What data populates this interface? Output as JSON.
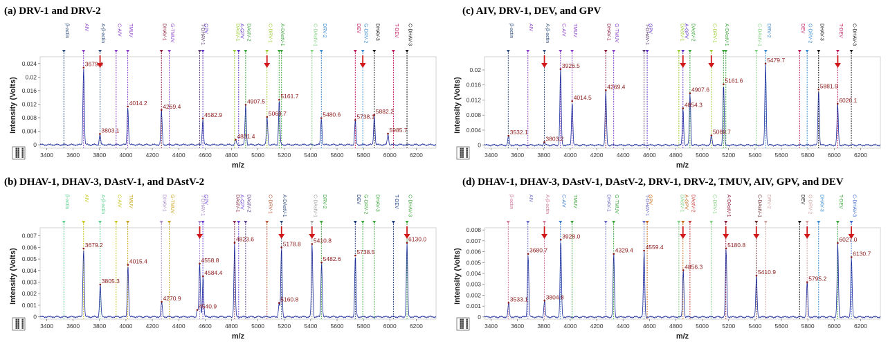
{
  "axes": {
    "xlabel": "m/z",
    "ylabel": "Intensity (Volts)"
  },
  "chart_data": [
    {
      "id": "a",
      "type": "line",
      "title": "(a) DRV-1 and DRV-2",
      "xlabel": "m/z",
      "ylabel": "Intensity (Volts)",
      "xlim": [
        3350,
        6350
      ],
      "ylim": [
        -0.001,
        0.026
      ],
      "xticks": [
        3400,
        3600,
        3800,
        4000,
        4200,
        4400,
        4600,
        4800,
        5000,
        5200,
        5400,
        5600,
        5800,
        6000,
        6200
      ],
      "yticks": [
        0.024,
        0.02,
        0.016,
        0.012,
        0.008,
        0.004,
        0
      ],
      "ytick_labels": [
        "0.024",
        "0.02",
        "0.016",
        "0.012",
        "0.008",
        "0.004",
        "0"
      ],
      "peaks": [
        {
          "x": 3679.4,
          "y": 0.0228,
          "label": "3679.4"
        },
        {
          "x": 3803.1,
          "y": 0.0032,
          "label": "3803.1"
        },
        {
          "x": 4014.2,
          "y": 0.0113,
          "label": "4014.2"
        },
        {
          "x": 4269.4,
          "y": 0.0103,
          "label": "4269.4"
        },
        {
          "x": 4582.9,
          "y": 0.0078,
          "label": "4582.9"
        },
        {
          "x": 4831.4,
          "y": 0.0015,
          "label": "4831.4"
        },
        {
          "x": 4907.5,
          "y": 0.0118,
          "label": "4907.5"
        },
        {
          "x": 5069.7,
          "y": 0.0082,
          "label": "5069.7"
        },
        {
          "x": 5161.7,
          "y": 0.0133,
          "label": "5161.7"
        },
        {
          "x": 5480.6,
          "y": 0.0079,
          "label": "5480.6"
        },
        {
          "x": 5738.1,
          "y": 0.0073,
          "label": "5738.1"
        },
        {
          "x": 5882.2,
          "y": 0.0088,
          "label": "5882.2"
        },
        {
          "x": 5985.7,
          "y": 0.0033,
          "label": "5985.7"
        }
      ],
      "markers": [
        {
          "x": 3530,
          "label": "β-actin",
          "color": "#2f4f7f"
        },
        {
          "x": 3679,
          "label": "AIV",
          "color": "#8a3fc8"
        },
        {
          "x": 3804,
          "label": "A-β-actin",
          "color": "#2f4f7f"
        },
        {
          "x": 3926,
          "label": "C-AIV",
          "color": "#8a3fc8"
        },
        {
          "x": 4014,
          "label": "TMUV",
          "color": "#8a3fc8"
        },
        {
          "x": 4269,
          "label": "DHAV-1",
          "color": "#8b1a3a"
        },
        {
          "x": 4329,
          "label": "G-TMUV",
          "color": "#8a3fc8"
        },
        {
          "x": 4559,
          "label": "T-DHAV-1",
          "color": "#5b3f6f"
        },
        {
          "x": 4583,
          "label": "GPV",
          "color": "#5b2fc8"
        },
        {
          "x": 4823,
          "label": "DAstV-1",
          "color": "#9acd32"
        },
        {
          "x": 4854,
          "label": "A-GPV",
          "color": "#5b2fc8"
        },
        {
          "x": 4907,
          "label": "DAstV-2",
          "color": "#3aa63a"
        },
        {
          "x": 5069,
          "label": "C-DRV-1",
          "color": "#9acd32"
        },
        {
          "x": 5161,
          "label": "A-DAstV-1",
          "color": "#3aa63a"
        },
        {
          "x": 5179,
          "label": "",
          "color": "#3aa63a"
        },
        {
          "x": 5410,
          "label": "C-DAstV-1",
          "color": "#7fd07f"
        },
        {
          "x": 5481,
          "label": "DRV-2",
          "color": "#3a8ad0"
        },
        {
          "x": 5738,
          "label": "DEV",
          "color": "#c0185c"
        },
        {
          "x": 5795,
          "label": "G-DRV-2",
          "color": "#3a8ad0"
        },
        {
          "x": 5882,
          "label": "DHAV-3",
          "color": "#111111"
        },
        {
          "x": 6027,
          "label": "T-DEV",
          "color": "#c0185c"
        },
        {
          "x": 6130,
          "label": "C-DHAV-3",
          "color": "#111111"
        }
      ],
      "arrows": [
        3804,
        5069,
        5795
      ]
    },
    {
      "id": "b",
      "type": "line",
      "title": "(b) DHAV-1, DHAV-3, DAstV-1, and DAstV-2",
      "xlabel": "m/z",
      "ylabel": "Intensity (Volts)",
      "xlim": [
        3350,
        6350
      ],
      "ylim": [
        -0.0002,
        0.0077
      ],
      "xticks": [
        3400,
        3600,
        3800,
        4000,
        4200,
        4400,
        4600,
        4800,
        5000,
        5200,
        5400,
        5600,
        5800,
        6000,
        6200
      ],
      "yticks": [
        0.007,
        0.006,
        0.005,
        0.004,
        0.003,
        0.002,
        0.001,
        0
      ],
      "ytick_labels": [
        "0.007",
        "0.006",
        "0.005",
        "0.004",
        "0.003",
        "0.002",
        "0.001",
        "0"
      ],
      "peaks": [
        {
          "x": 3679.2,
          "y": 0.0059,
          "label": "3679.2"
        },
        {
          "x": 3805.3,
          "y": 0.0028,
          "label": "3805.3"
        },
        {
          "x": 4015.4,
          "y": 0.0045,
          "label": "4015.4"
        },
        {
          "x": 4270.9,
          "y": 0.0013,
          "label": "4270.9"
        },
        {
          "x": 4540.9,
          "y": 0.0006,
          "label": "4540.9"
        },
        {
          "x": 4558.8,
          "y": 0.0046,
          "label": "4558.8"
        },
        {
          "x": 4584.4,
          "y": 0.0035,
          "label": "4584.4"
        },
        {
          "x": 4823.6,
          "y": 0.0064,
          "label": "4823.6"
        },
        {
          "x": 5160.8,
          "y": 0.0012,
          "label": "5160.8"
        },
        {
          "x": 5178.8,
          "y": 0.006,
          "label": "5178.8"
        },
        {
          "x": 5410.8,
          "y": 0.0063,
          "label": "5410.8"
        },
        {
          "x": 5482.6,
          "y": 0.0047,
          "label": "5482.6"
        },
        {
          "x": 5738.5,
          "y": 0.0053,
          "label": "5738.5"
        },
        {
          "x": 6130.0,
          "y": 0.0064,
          "label": "6130.0"
        }
      ],
      "markers": [
        {
          "x": 3530,
          "label": "β-actin",
          "color": "#5fd08f"
        },
        {
          "x": 3679,
          "label": "AIV",
          "color": "#c8c81a"
        },
        {
          "x": 3804,
          "label": "A-β-actin",
          "color": "#5fd08f"
        },
        {
          "x": 3926,
          "label": "C-AIV",
          "color": "#c8c81a"
        },
        {
          "x": 4014,
          "label": "TMUV",
          "color": "#c8a41a"
        },
        {
          "x": 4269,
          "label": "DHAV-1",
          "color": "#a88ac8"
        },
        {
          "x": 4329,
          "label": "G-TMUV",
          "color": "#c8a41a"
        },
        {
          "x": 4559,
          "label": "T-DHAV-1",
          "color": "#a88ac8"
        },
        {
          "x": 4583,
          "label": "GPV",
          "color": "#6a3fd8"
        },
        {
          "x": 4823,
          "label": "DAstV-1",
          "color": "#8b2a4a"
        },
        {
          "x": 4854,
          "label": "A-GPV",
          "color": "#6a3fd8"
        },
        {
          "x": 4907,
          "label": "DAstV-2",
          "color": "#5b3f8f"
        },
        {
          "x": 5069,
          "label": "C-DRV-1",
          "color": "#b85a3a"
        },
        {
          "x": 5179,
          "label": "A-DAstV-1",
          "color": "#2f4f7f"
        },
        {
          "x": 5410,
          "label": "C-DAstV-1",
          "color": "#a0a0a0"
        },
        {
          "x": 5481,
          "label": "DRV-2",
          "color": "#3aa63a"
        },
        {
          "x": 5738,
          "label": "DEV",
          "color": "#1a3a7f"
        },
        {
          "x": 5795,
          "label": "G-DRV-2",
          "color": "#3aa63a"
        },
        {
          "x": 5882,
          "label": "DHAV-3",
          "color": "#3aa63a"
        },
        {
          "x": 6027,
          "label": "T-DEV",
          "color": "#1a3a7f"
        },
        {
          "x": 6130,
          "label": "C-DHAV-3",
          "color": "#3aa63a"
        }
      ],
      "arrows": [
        4559,
        5179,
        5410,
        6130
      ]
    },
    {
      "id": "c",
      "type": "line",
      "title": "(c) AIV, DRV-1, DEV, and GPV",
      "xlabel": "m/z",
      "ylabel": "Intensity (Volts)",
      "xlim": [
        3350,
        6350
      ],
      "ylim": [
        -0.0008,
        0.0235
      ],
      "xticks": [
        3400,
        3600,
        3800,
        4000,
        4200,
        4400,
        4600,
        4800,
        5000,
        5200,
        5400,
        5600,
        5800,
        6000,
        6200
      ],
      "yticks": [
        0.02,
        0.016,
        0.012,
        0.008,
        0.004,
        0
      ],
      "ytick_labels": [
        "0.02",
        "0.016",
        "0.012",
        "0.008",
        "0.004",
        "0"
      ],
      "peaks": [
        {
          "x": 3532.1,
          "y": 0.0025,
          "label": "3532.1"
        },
        {
          "x": 3803.2,
          "y": 0.0008,
          "label": "3803.2"
        },
        {
          "x": 3926.5,
          "y": 0.0202,
          "label": "3926.5"
        },
        {
          "x": 4014.5,
          "y": 0.0117,
          "label": "4014.5"
        },
        {
          "x": 4269.4,
          "y": 0.0146,
          "label": "4269.4"
        },
        {
          "x": 4854.3,
          "y": 0.0098,
          "label": "4854.3"
        },
        {
          "x": 4907.6,
          "y": 0.0138,
          "label": "4907.6"
        },
        {
          "x": 5069.7,
          "y": 0.0026,
          "label": "5069.7"
        },
        {
          "x": 5161.6,
          "y": 0.0162,
          "label": "5161.6"
        },
        {
          "x": 5479.7,
          "y": 0.0217,
          "label": "5479.7"
        },
        {
          "x": 5881.9,
          "y": 0.0148,
          "label": "5881.9"
        },
        {
          "x": 6026.1,
          "y": 0.011,
          "label": "6026.1"
        }
      ],
      "markers": [
        {
          "x": 3530,
          "label": "β-actin",
          "color": "#2f4f7f"
        },
        {
          "x": 3679,
          "label": "AIV",
          "color": "#8a3fc8"
        },
        {
          "x": 3804,
          "label": "A-β-actin",
          "color": "#2f4f7f"
        },
        {
          "x": 3926,
          "label": "C-AIV",
          "color": "#8a3fc8"
        },
        {
          "x": 4014,
          "label": "TMUV",
          "color": "#8a3fc8"
        },
        {
          "x": 4269,
          "label": "DHAV-1",
          "color": "#8b1a3a"
        },
        {
          "x": 4329,
          "label": "G-TMUV",
          "color": "#8a3fc8"
        },
        {
          "x": 4559,
          "label": "T-DHAV-1",
          "color": "#5b3f6f"
        },
        {
          "x": 4583,
          "label": "GPV",
          "color": "#5b2fc8"
        },
        {
          "x": 4823,
          "label": "DAstV-1",
          "color": "#9acd32"
        },
        {
          "x": 4854,
          "label": "A-GPV",
          "color": "#5b2fc8"
        },
        {
          "x": 4907,
          "label": "DAstV-2",
          "color": "#3aa63a"
        },
        {
          "x": 5069,
          "label": "C-DRV-1",
          "color": "#9acd32"
        },
        {
          "x": 5161,
          "label": "A-DAstV-1",
          "color": "#3aa63a"
        },
        {
          "x": 5179,
          "label": "",
          "color": "#3aa63a"
        },
        {
          "x": 5410,
          "label": "C-DAstV-1",
          "color": "#7fd07f"
        },
        {
          "x": 5481,
          "label": "DRV-2",
          "color": "#3a8ad0"
        },
        {
          "x": 5738,
          "label": "DEV",
          "color": "#c0185c"
        },
        {
          "x": 5795,
          "label": "G-DRV-2",
          "color": "#3a8ad0"
        },
        {
          "x": 5882,
          "label": "DHAV-3",
          "color": "#111111"
        },
        {
          "x": 6027,
          "label": "T-DEV",
          "color": "#c0185c"
        },
        {
          "x": 6130,
          "label": "C-DHAV-3",
          "color": "#111111"
        }
      ],
      "arrows": [
        3804,
        4854,
        5069,
        6027
      ]
    },
    {
      "id": "d",
      "type": "line",
      "title": "(d) DHAV-1, DHAV-3, DAstV-1, DAstV-2, DRV-1, DRV-2, TMUV, AIV, GPV, and DEV",
      "xlabel": "m/z",
      "ylabel": "Intensity (Volts)",
      "xlim": [
        3350,
        6350
      ],
      "ylim": [
        -0.0002,
        0.0082
      ],
      "xticks": [
        3400,
        3600,
        3800,
        4000,
        4200,
        4400,
        4600,
        4800,
        5000,
        5200,
        5400,
        5600,
        5800,
        6000,
        6200
      ],
      "yticks": [
        0.008,
        0.007,
        0.006,
        0.005,
        0.004,
        0.003,
        0.002,
        0.001,
        0
      ],
      "ytick_labels": [
        "0.008",
        "0.007",
        "0.006",
        "0.005",
        "0.004",
        "0.003",
        "0.002",
        "0.001",
        "0"
      ],
      "peaks": [
        {
          "x": 3533.1,
          "y": 0.0013,
          "label": "3533.1"
        },
        {
          "x": 3680.7,
          "y": 0.0058,
          "label": "3680.7"
        },
        {
          "x": 3804.8,
          "y": 0.0015,
          "label": "3804.8"
        },
        {
          "x": 3928.0,
          "y": 0.0071,
          "label": "3928.0"
        },
        {
          "x": 4329.4,
          "y": 0.0058,
          "label": "4329.4"
        },
        {
          "x": 4559.4,
          "y": 0.0061,
          "label": "4559.4"
        },
        {
          "x": 4856.3,
          "y": 0.0043,
          "label": "4856.3"
        },
        {
          "x": 5180.8,
          "y": 0.0063,
          "label": "5180.8"
        },
        {
          "x": 5410.9,
          "y": 0.0038,
          "label": "5410.9"
        },
        {
          "x": 5795.2,
          "y": 0.0032,
          "label": "5795.2"
        },
        {
          "x": 6027.0,
          "y": 0.0068,
          "label": "6027.0"
        },
        {
          "x": 6130.7,
          "y": 0.0055,
          "label": "6130.7"
        }
      ],
      "markers": [
        {
          "x": 3530,
          "label": "β-actin",
          "color": "#d07a9a"
        },
        {
          "x": 3679,
          "label": "AIV",
          "color": "#6a6ac8"
        },
        {
          "x": 3804,
          "label": "A-β-actin",
          "color": "#d07a9a"
        },
        {
          "x": 3926,
          "label": "C-AIV",
          "color": "#3a7ad0"
        },
        {
          "x": 4014,
          "label": "TMUV",
          "color": "#3aa63a"
        },
        {
          "x": 4269,
          "label": "DHAV-1",
          "color": "#6a6ac8"
        },
        {
          "x": 4329,
          "label": "G-TMUV",
          "color": "#3aa63a"
        },
        {
          "x": 4559,
          "label": "T-DHAV-1",
          "color": "#6a6ac8"
        },
        {
          "x": 4583,
          "label": "GPV",
          "color": "#c86a1a"
        },
        {
          "x": 4823,
          "label": "DAstV-1",
          "color": "#7fd07f"
        },
        {
          "x": 4854,
          "label": "A-GPV",
          "color": "#c86a1a"
        },
        {
          "x": 4907,
          "label": "DAstV-2",
          "color": "#c83a3a"
        },
        {
          "x": 5069,
          "label": "C-DRV-1",
          "color": "#7fd07f"
        },
        {
          "x": 5179,
          "label": "A-DAstV-1",
          "color": "#8b1a3a"
        },
        {
          "x": 5410,
          "label": "C-DAstV-1",
          "color": "#6a2a2a"
        },
        {
          "x": 5481,
          "label": "DRV-2",
          "color": "#d0a0a0"
        },
        {
          "x": 5738,
          "label": "DEV",
          "color": "#111111"
        },
        {
          "x": 5795,
          "label": "G-DRV-2",
          "color": "#d0a0a0"
        },
        {
          "x": 5882,
          "label": "DHAV-3",
          "color": "#3a8ad0"
        },
        {
          "x": 6027,
          "label": "T-DEV",
          "color": "#3aa63a"
        },
        {
          "x": 6130,
          "label": "C-DHAV-3",
          "color": "#3a6ad0"
        }
      ],
      "arrows": [
        3804,
        4854,
        5179,
        5410,
        5795,
        6130
      ]
    }
  ]
}
